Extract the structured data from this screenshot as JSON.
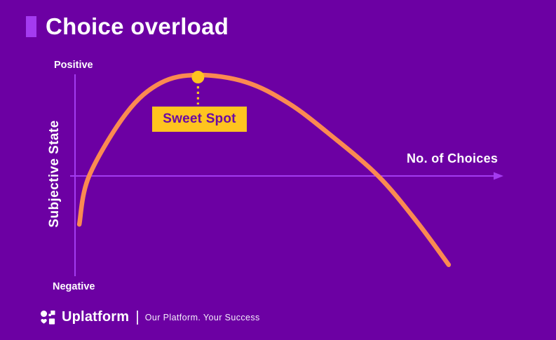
{
  "colors": {
    "background": "#6C00A3",
    "accent_bar": "#A43BF0",
    "axis": "#A43BF0",
    "curve": "#FB8A51",
    "highlight_yellow": "#FFC41F",
    "annotation_text": "#6B0BA3",
    "text": "#FFFFFF"
  },
  "header": {
    "title": "Choice overload"
  },
  "chart": {
    "positive_label": "Positive",
    "negative_label": "Negative",
    "y_axis_title": "Subjective State",
    "x_axis_title": "No. of Choices",
    "annotation_label": "Sweet Spot"
  },
  "chart_data": {
    "type": "line",
    "title": "Choice overload",
    "xlabel": "No. of Choices",
    "ylabel": "Subjective State",
    "x_range_shown": [
      0,
      10
    ],
    "ylim": [
      -1,
      1
    ],
    "y_axis_qualitative_labels": {
      "top": "Positive",
      "bottom": "Negative"
    },
    "grid": false,
    "legend": "none",
    "series": [
      {
        "name": "Subjective state vs. number of choices (inverted-U)",
        "points": [
          [
            0.1,
            -0.48
          ],
          [
            0.33,
            0.0
          ],
          [
            1.2,
            0.62
          ],
          [
            2.0,
            0.92
          ],
          [
            2.88,
            1.0
          ],
          [
            4.0,
            0.93
          ],
          [
            5.0,
            0.72
          ],
          [
            6.0,
            0.4
          ],
          [
            7.1,
            0.0
          ],
          [
            8.0,
            -0.45
          ],
          [
            8.75,
            -0.88
          ]
        ]
      }
    ],
    "annotations": [
      {
        "label": "Sweet Spot",
        "x": 2.88,
        "y": 1.0,
        "marker": "filled-circle",
        "connector": "dashed-line"
      }
    ]
  },
  "footer": {
    "brand": "Uplatform",
    "tagline": "Our Platform. Your Success"
  }
}
